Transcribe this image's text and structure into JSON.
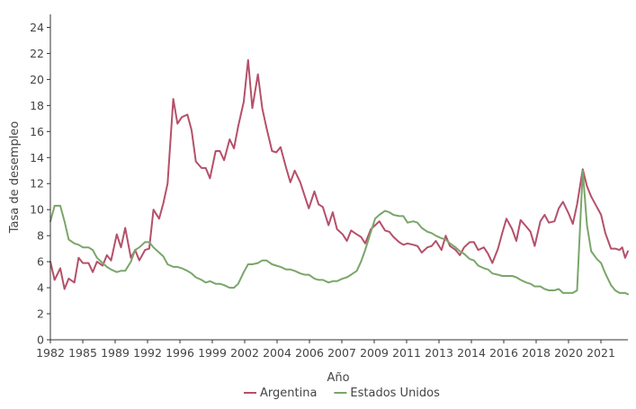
{
  "chart_data": {
    "type": "line",
    "title": "",
    "xlabel": "Año",
    "ylabel": "Tasa de desempleo",
    "xlim": [
      1982,
      2022.9
    ],
    "ylim": [
      0,
      25
    ],
    "yticks": [
      0,
      2,
      4,
      6,
      8,
      10,
      12,
      14,
      16,
      18,
      20,
      22,
      24
    ],
    "xticks": [
      "1982",
      "1985",
      "1989",
      "1992",
      "1996",
      "1999",
      "2002",
      "2004",
      "2006",
      "2007",
      "2009",
      "2011",
      "2013",
      "2014",
      "2016",
      "2018",
      "2020",
      "2021"
    ],
    "grid": false,
    "legend_position": "bottom",
    "series": [
      {
        "name": "Argentina",
        "color": "#b5506a",
        "points": [
          [
            1982.0,
            6.0
          ],
          [
            1982.3,
            4.6
          ],
          [
            1982.7,
            5.5
          ],
          [
            1983.0,
            3.9
          ],
          [
            1983.3,
            4.7
          ],
          [
            1983.7,
            4.4
          ],
          [
            1984.0,
            6.3
          ],
          [
            1984.3,
            5.9
          ],
          [
            1984.7,
            5.9
          ],
          [
            1985.0,
            5.2
          ],
          [
            1985.3,
            6.0
          ],
          [
            1985.7,
            5.7
          ],
          [
            1986.0,
            6.5
          ],
          [
            1986.3,
            6.1
          ],
          [
            1986.7,
            8.1
          ],
          [
            1987.0,
            7.1
          ],
          [
            1987.3,
            8.6
          ],
          [
            1987.7,
            6.3
          ],
          [
            1988.0,
            6.9
          ],
          [
            1988.3,
            6.1
          ],
          [
            1988.7,
            6.9
          ],
          [
            1989.0,
            7.0
          ],
          [
            1989.3,
            10.0
          ],
          [
            1989.7,
            9.3
          ],
          [
            1990.0,
            10.5
          ],
          [
            1990.3,
            12.0
          ],
          [
            1990.7,
            18.5
          ],
          [
            1991.0,
            16.6
          ],
          [
            1991.3,
            17.1
          ],
          [
            1991.7,
            17.3
          ],
          [
            1992.0,
            16.1
          ],
          [
            1992.3,
            13.7
          ],
          [
            1992.7,
            13.2
          ],
          [
            1993.0,
            13.2
          ],
          [
            1993.3,
            12.4
          ],
          [
            1993.7,
            14.5
          ],
          [
            1994.0,
            14.5
          ],
          [
            1994.3,
            13.8
          ],
          [
            1994.7,
            15.4
          ],
          [
            1995.0,
            14.7
          ],
          [
            1995.3,
            16.4
          ],
          [
            1995.7,
            18.3
          ],
          [
            1996.0,
            21.5
          ],
          [
            1996.3,
            17.8
          ],
          [
            1996.7,
            20.4
          ],
          [
            1997.0,
            17.8
          ],
          [
            1997.3,
            16.3
          ],
          [
            1997.7,
            14.5
          ],
          [
            1998.0,
            14.4
          ],
          [
            1998.3,
            14.8
          ],
          [
            1998.7,
            13.2
          ],
          [
            1999.0,
            12.1
          ],
          [
            1999.3,
            13.0
          ],
          [
            1999.7,
            12.1
          ],
          [
            2000.0,
            11.1
          ],
          [
            2000.3,
            10.1
          ],
          [
            2000.7,
            11.4
          ],
          [
            2001.0,
            10.4
          ],
          [
            2001.3,
            10.2
          ],
          [
            2001.7,
            8.8
          ],
          [
            2002.0,
            9.8
          ],
          [
            2002.3,
            8.5
          ],
          [
            2002.7,
            8.1
          ],
          [
            2003.0,
            7.6
          ],
          [
            2003.3,
            8.4
          ],
          [
            2003.7,
            8.1
          ],
          [
            2004.0,
            7.9
          ],
          [
            2004.3,
            7.4
          ],
          [
            2004.7,
            8.5
          ],
          [
            2005.0,
            8.8
          ],
          [
            2005.3,
            9.1
          ],
          [
            2005.7,
            8.4
          ],
          [
            2006.0,
            8.3
          ],
          [
            2006.3,
            7.9
          ],
          [
            2006.7,
            7.5
          ],
          [
            2007.0,
            7.3
          ],
          [
            2007.3,
            7.4
          ],
          [
            2007.7,
            7.3
          ],
          [
            2008.0,
            7.2
          ],
          [
            2008.3,
            6.7
          ],
          [
            2008.7,
            7.1
          ],
          [
            2009.0,
            7.2
          ],
          [
            2009.3,
            7.6
          ],
          [
            2009.7,
            6.9
          ],
          [
            2010.0,
            8.0
          ],
          [
            2010.3,
            7.2
          ],
          [
            2010.7,
            6.9
          ],
          [
            2011.0,
            6.5
          ],
          [
            2011.3,
            7.1
          ],
          [
            2011.7,
            7.5
          ],
          [
            2012.0,
            7.5
          ],
          [
            2012.3,
            6.9
          ],
          [
            2012.7,
            7.1
          ],
          [
            2013.0,
            6.6
          ],
          [
            2013.3,
            5.9
          ],
          [
            2013.7,
            7.0
          ],
          [
            2014.0,
            8.2
          ],
          [
            2014.3,
            9.3
          ],
          [
            2014.7,
            8.5
          ],
          [
            2015.0,
            7.6
          ],
          [
            2015.3,
            9.2
          ],
          [
            2015.7,
            8.7
          ],
          [
            2016.0,
            8.3
          ],
          [
            2016.3,
            7.2
          ],
          [
            2016.7,
            9.1
          ],
          [
            2017.0,
            9.6
          ],
          [
            2017.3,
            9.0
          ],
          [
            2017.7,
            9.1
          ],
          [
            2018.0,
            10.1
          ],
          [
            2018.3,
            10.6
          ],
          [
            2018.7,
            9.7
          ],
          [
            2019.0,
            8.9
          ],
          [
            2019.3,
            10.4
          ],
          [
            2019.7,
            13.1
          ],
          [
            2020.0,
            11.8
          ],
          [
            2020.3,
            11.0
          ],
          [
            2020.7,
            10.2
          ],
          [
            2021.0,
            9.6
          ],
          [
            2021.3,
            8.2
          ],
          [
            2021.7,
            7.0
          ],
          [
            2022.0,
            7.0
          ],
          [
            2022.3,
            6.9
          ],
          [
            2022.5,
            7.1
          ],
          [
            2022.7,
            6.3
          ],
          [
            2022.9,
            6.8
          ]
        ]
      },
      {
        "name": "Estados Unidos",
        "color": "#7aa66a",
        "points": [
          [
            1982.0,
            9.1
          ],
          [
            1982.3,
            10.3
          ],
          [
            1982.7,
            10.3
          ],
          [
            1983.0,
            9.1
          ],
          [
            1983.3,
            7.7
          ],
          [
            1983.7,
            7.4
          ],
          [
            1984.0,
            7.3
          ],
          [
            1984.3,
            7.1
          ],
          [
            1984.7,
            7.1
          ],
          [
            1985.0,
            6.9
          ],
          [
            1985.3,
            6.3
          ],
          [
            1985.7,
            5.9
          ],
          [
            1986.0,
            5.6
          ],
          [
            1986.3,
            5.4
          ],
          [
            1986.7,
            5.2
          ],
          [
            1987.0,
            5.3
          ],
          [
            1987.3,
            5.3
          ],
          [
            1987.7,
            6.0
          ],
          [
            1988.0,
            6.9
          ],
          [
            1988.3,
            7.1
          ],
          [
            1988.7,
            7.5
          ],
          [
            1989.0,
            7.5
          ],
          [
            1989.3,
            7.1
          ],
          [
            1989.7,
            6.7
          ],
          [
            1990.0,
            6.4
          ],
          [
            1990.3,
            5.8
          ],
          [
            1990.7,
            5.6
          ],
          [
            1991.0,
            5.6
          ],
          [
            1991.3,
            5.5
          ],
          [
            1991.7,
            5.3
          ],
          [
            1992.0,
            5.1
          ],
          [
            1992.3,
            4.8
          ],
          [
            1992.7,
            4.6
          ],
          [
            1993.0,
            4.4
          ],
          [
            1993.3,
            4.5
          ],
          [
            1993.7,
            4.3
          ],
          [
            1994.0,
            4.3
          ],
          [
            1994.3,
            4.2
          ],
          [
            1994.7,
            4.0
          ],
          [
            1995.0,
            4.0
          ],
          [
            1995.3,
            4.3
          ],
          [
            1995.7,
            5.2
          ],
          [
            1996.0,
            5.8
          ],
          [
            1996.3,
            5.8
          ],
          [
            1996.7,
            5.9
          ],
          [
            1997.0,
            6.1
          ],
          [
            1997.3,
            6.1
          ],
          [
            1997.7,
            5.8
          ],
          [
            1998.0,
            5.7
          ],
          [
            1998.3,
            5.6
          ],
          [
            1998.7,
            5.4
          ],
          [
            1999.0,
            5.4
          ],
          [
            1999.3,
            5.3
          ],
          [
            1999.7,
            5.1
          ],
          [
            2000.0,
            5.0
          ],
          [
            2000.3,
            5.0
          ],
          [
            2000.7,
            4.7
          ],
          [
            2001.0,
            4.6
          ],
          [
            2001.3,
            4.6
          ],
          [
            2001.7,
            4.4
          ],
          [
            2002.0,
            4.5
          ],
          [
            2002.3,
            4.5
          ],
          [
            2002.7,
            4.7
          ],
          [
            2003.0,
            4.8
          ],
          [
            2003.3,
            5.0
          ],
          [
            2003.7,
            5.3
          ],
          [
            2004.0,
            6.0
          ],
          [
            2004.3,
            6.9
          ],
          [
            2004.7,
            8.3
          ],
          [
            2005.0,
            9.3
          ],
          [
            2005.3,
            9.6
          ],
          [
            2005.7,
            9.9
          ],
          [
            2006.0,
            9.8
          ],
          [
            2006.3,
            9.6
          ],
          [
            2006.7,
            9.5
          ],
          [
            2007.0,
            9.5
          ],
          [
            2007.3,
            9.0
          ],
          [
            2007.7,
            9.1
          ],
          [
            2008.0,
            9.0
          ],
          [
            2008.3,
            8.6
          ],
          [
            2008.7,
            8.3
          ],
          [
            2009.0,
            8.2
          ],
          [
            2009.3,
            8.0
          ],
          [
            2009.7,
            7.8
          ],
          [
            2010.0,
            7.7
          ],
          [
            2010.3,
            7.4
          ],
          [
            2010.7,
            7.1
          ],
          [
            2011.0,
            6.8
          ],
          [
            2011.3,
            6.6
          ],
          [
            2011.7,
            6.2
          ],
          [
            2012.0,
            6.1
          ],
          [
            2012.3,
            5.7
          ],
          [
            2012.7,
            5.5
          ],
          [
            2013.0,
            5.4
          ],
          [
            2013.3,
            5.1
          ],
          [
            2013.7,
            5.0
          ],
          [
            2014.0,
            4.9
          ],
          [
            2014.3,
            4.9
          ],
          [
            2014.7,
            4.9
          ],
          [
            2015.0,
            4.8
          ],
          [
            2015.3,
            4.6
          ],
          [
            2015.7,
            4.4
          ],
          [
            2016.0,
            4.3
          ],
          [
            2016.3,
            4.1
          ],
          [
            2016.7,
            4.1
          ],
          [
            2017.0,
            3.9
          ],
          [
            2017.3,
            3.8
          ],
          [
            2017.7,
            3.8
          ],
          [
            2018.0,
            3.9
          ],
          [
            2018.3,
            3.6
          ],
          [
            2018.7,
            3.6
          ],
          [
            2019.0,
            3.6
          ],
          [
            2019.3,
            3.8
          ],
          [
            2019.7,
            13.0
          ],
          [
            2020.0,
            8.8
          ],
          [
            2020.3,
            6.8
          ],
          [
            2020.7,
            6.2
          ],
          [
            2021.0,
            5.9
          ],
          [
            2021.3,
            5.1
          ],
          [
            2021.7,
            4.2
          ],
          [
            2022.0,
            3.8
          ],
          [
            2022.3,
            3.6
          ],
          [
            2022.7,
            3.6
          ],
          [
            2022.9,
            3.5
          ]
        ]
      }
    ]
  }
}
